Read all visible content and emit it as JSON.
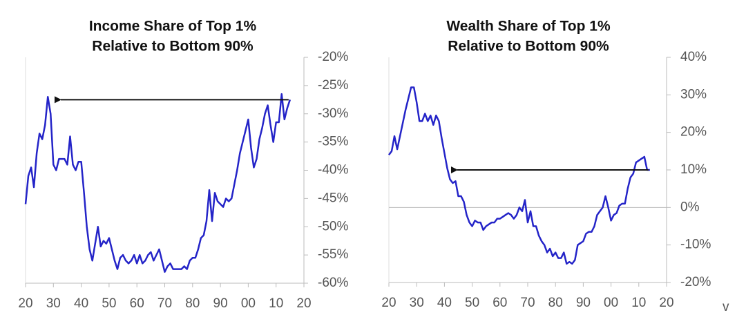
{
  "chart_data": [
    {
      "type": "line",
      "title": "Income Share of Top 1%",
      "subtitle": "Relative to Bottom 90%",
      "x": [
        1920,
        1921,
        1922,
        1923,
        1924,
        1925,
        1926,
        1927,
        1928,
        1929,
        1930,
        1931,
        1932,
        1933,
        1934,
        1935,
        1936,
        1937,
        1938,
        1939,
        1940,
        1941,
        1942,
        1943,
        1944,
        1945,
        1946,
        1947,
        1948,
        1949,
        1950,
        1951,
        1952,
        1953,
        1954,
        1955,
        1956,
        1957,
        1958,
        1959,
        1960,
        1961,
        1962,
        1963,
        1964,
        1965,
        1966,
        1967,
        1968,
        1969,
        1970,
        1971,
        1972,
        1973,
        1974,
        1975,
        1976,
        1977,
        1978,
        1979,
        1980,
        1981,
        1982,
        1983,
        1984,
        1985,
        1986,
        1987,
        1988,
        1989,
        1990,
        1991,
        1992,
        1993,
        1994,
        1995,
        1996,
        1997,
        1998,
        1999,
        2000,
        2001,
        2002,
        2003,
        2004,
        2005,
        2006,
        2007,
        2008,
        2009,
        2010,
        2011,
        2012,
        2013,
        2014,
        2015
      ],
      "series": [
        {
          "name": "Income Share of Top 1%",
          "color": "#2424c8",
          "values": [
            -46,
            -41,
            -39.5,
            -43,
            -37,
            -33.5,
            -34.5,
            -32,
            -27,
            -30,
            -39,
            -40,
            -38,
            -38,
            -38,
            -39,
            -34,
            -39,
            -40,
            -38.5,
            -38.5,
            -44,
            -50,
            -54,
            -56,
            -53,
            -50,
            -53.5,
            -52.5,
            -53,
            -52,
            -54,
            -56,
            -57.5,
            -55.5,
            -55,
            -56,
            -56.5,
            -56,
            -55,
            -56.5,
            -55,
            -56.5,
            -56,
            -55,
            -54.5,
            -56,
            -55,
            -54,
            -56,
            -58,
            -57,
            -56.5,
            -57.5,
            -57.5,
            -57.5,
            -57.5,
            -57,
            -57.5,
            -56,
            -55.5,
            -55.5,
            -54,
            -52,
            -51.5,
            -49,
            -43.5,
            -49,
            -44,
            -45.5,
            -46,
            -46.5,
            -45,
            -45.5,
            -45,
            -42.5,
            -40,
            -37,
            -35,
            -33,
            -31,
            -36,
            -39.5,
            -38,
            -34.5,
            -32.5,
            -30,
            -28.5,
            -32,
            -35,
            -31.5,
            -31.5,
            -26.5,
            -31,
            -29,
            -27.5
          ]
        }
      ],
      "xlim": [
        1920,
        2020
      ],
      "xticks": [
        {
          "value": 1920,
          "label": "20"
        },
        {
          "value": 1930,
          "label": "30"
        },
        {
          "value": 1940,
          "label": "40"
        },
        {
          "value": 1950,
          "label": "50"
        },
        {
          "value": 1960,
          "label": "60"
        },
        {
          "value": 1970,
          "label": "70"
        },
        {
          "value": 1980,
          "label": "80"
        },
        {
          "value": 1990,
          "label": "90"
        },
        {
          "value": 2000,
          "label": "00"
        },
        {
          "value": 2010,
          "label": "10"
        },
        {
          "value": 2020,
          "label": "20"
        }
      ],
      "ylim": [
        -60,
        -20
      ],
      "yticks": [
        {
          "value": -60,
          "label": "-60%"
        },
        {
          "value": -55,
          "label": "-55%"
        },
        {
          "value": -50,
          "label": "-50%"
        },
        {
          "value": -45,
          "label": "-45%"
        },
        {
          "value": -40,
          "label": "-40%"
        },
        {
          "value": -35,
          "label": "-35%"
        },
        {
          "value": -30,
          "label": "-30%"
        },
        {
          "value": -25,
          "label": "-25%"
        },
        {
          "value": -20,
          "label": "-20%"
        }
      ],
      "zeroline": false,
      "grid": false
    },
    {
      "type": "line",
      "title": "Wealth Share of Top 1%",
      "subtitle": "Relative to Bottom 90%",
      "x": [
        1920,
        1921,
        1922,
        1923,
        1924,
        1925,
        1926,
        1927,
        1928,
        1929,
        1930,
        1931,
        1932,
        1933,
        1934,
        1935,
        1936,
        1937,
        1938,
        1939,
        1940,
        1941,
        1942,
        1943,
        1944,
        1945,
        1946,
        1947,
        1948,
        1949,
        1950,
        1951,
        1952,
        1953,
        1954,
        1955,
        1956,
        1957,
        1958,
        1959,
        1960,
        1961,
        1962,
        1963,
        1964,
        1965,
        1966,
        1967,
        1968,
        1969,
        1970,
        1971,
        1972,
        1973,
        1974,
        1975,
        1976,
        1977,
        1978,
        1979,
        1980,
        1981,
        1982,
        1983,
        1984,
        1985,
        1986,
        1987,
        1988,
        1989,
        1990,
        1991,
        1992,
        1993,
        1994,
        1995,
        1996,
        1997,
        1998,
        1999,
        2000,
        2001,
        2002,
        2003,
        2004,
        2005,
        2006,
        2007,
        2008,
        2009,
        2010,
        2011,
        2012,
        2013,
        2014
      ],
      "series": [
        {
          "name": "Wealth Share of Top 1%",
          "color": "#2424c8",
          "values": [
            14,
            15,
            19,
            15.5,
            19,
            22.5,
            26,
            29,
            32,
            32,
            28,
            23,
            23,
            25,
            23,
            24.5,
            22,
            24.5,
            23,
            18.5,
            14.5,
            10.5,
            7.5,
            6.5,
            7,
            3,
            3,
            1.5,
            -2,
            -4,
            -5,
            -3.5,
            -4,
            -4,
            -6,
            -5,
            -4.5,
            -4,
            -4,
            -3,
            -3,
            -2.5,
            -2,
            -1.5,
            -2,
            -3,
            -2,
            0,
            -1,
            2,
            -4,
            -1,
            -5,
            -5,
            -7.5,
            -9,
            -10,
            -12,
            -11,
            -13,
            -12,
            -13.5,
            -13.5,
            -12,
            -15,
            -14.5,
            -15,
            -14,
            -10,
            -9.5,
            -9,
            -7,
            -6.5,
            -6.5,
            -5,
            -2,
            -1,
            0,
            3,
            0,
            -3.5,
            -2,
            -1.5,
            0.5,
            1,
            1,
            5,
            8,
            9,
            12,
            12.5,
            13,
            13.5,
            10,
            10
          ]
        }
      ],
      "xlim": [
        1920,
        2020
      ],
      "xticks": [
        {
          "value": 1920,
          "label": "20"
        },
        {
          "value": 1930,
          "label": "30"
        },
        {
          "value": 1940,
          "label": "40"
        },
        {
          "value": 1950,
          "label": "50"
        },
        {
          "value": 1960,
          "label": "60"
        },
        {
          "value": 1970,
          "label": "70"
        },
        {
          "value": 1980,
          "label": "80"
        },
        {
          "value": 1990,
          "label": "90"
        },
        {
          "value": 2000,
          "label": "00"
        },
        {
          "value": 2010,
          "label": "10"
        },
        {
          "value": 2020,
          "label": "20"
        }
      ],
      "ylim": [
        -20,
        40
      ],
      "yticks": [
        {
          "value": -20,
          "label": "-20%"
        },
        {
          "value": -10,
          "label": "-10%"
        },
        {
          "value": 0,
          "label": "0%"
        },
        {
          "value": 10,
          "label": "10%"
        },
        {
          "value": 20,
          "label": "20%"
        },
        {
          "value": 30,
          "label": "30%"
        },
        {
          "value": 40,
          "label": "40%"
        }
      ],
      "zeroline": true,
      "grid": false
    }
  ],
  "note": "v"
}
